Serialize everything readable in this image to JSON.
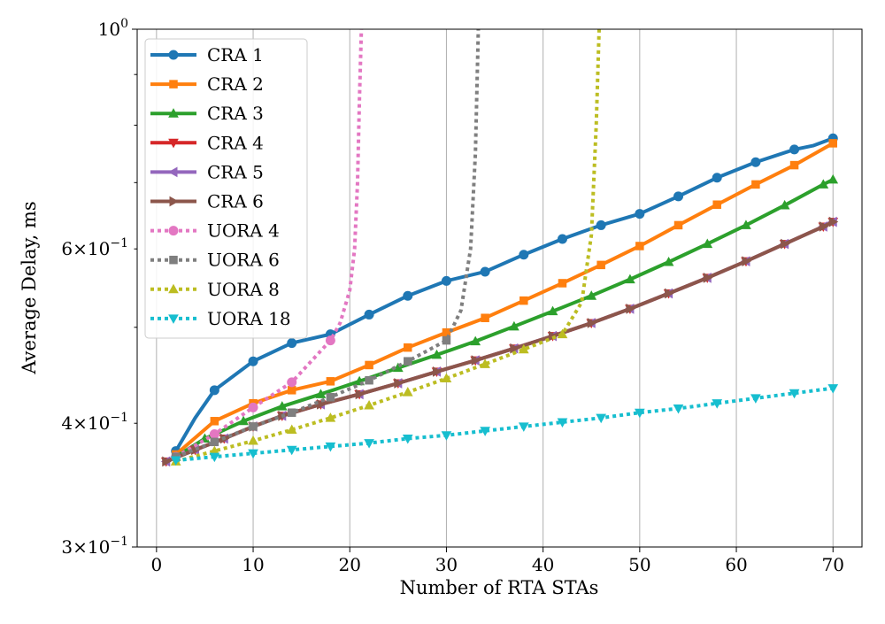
{
  "chart_data": {
    "type": "line",
    "xlabel": "Number of RTA STAs",
    "ylabel": "Average Delay, ms",
    "xlim": [
      -2,
      73
    ],
    "ylim": [
      0.3,
      1.0
    ],
    "yscale": "log",
    "grid": "x-major-vertical",
    "legend_position": "top-left",
    "x_ticks": [
      {
        "value": 0,
        "label": "0"
      },
      {
        "value": 10,
        "label": "10"
      },
      {
        "value": 20,
        "label": "20"
      },
      {
        "value": 30,
        "label": "30"
      },
      {
        "value": 40,
        "label": "40"
      },
      {
        "value": 50,
        "label": "50"
      },
      {
        "value": 60,
        "label": "60"
      },
      {
        "value": 70,
        "label": "70"
      }
    ],
    "y_major_ticks": [
      {
        "value": 0.3,
        "base": "3×10",
        "exp": "−1"
      },
      {
        "value": 1.0,
        "base": "10",
        "exp": "0"
      }
    ],
    "y_minor_ticks": [
      {
        "value": 0.4,
        "base": "4×10",
        "exp": "−1",
        "labeled": true
      },
      {
        "value": 0.5,
        "labeled": false
      },
      {
        "value": 0.6,
        "base": "6×10",
        "exp": "−1",
        "labeled": true
      },
      {
        "value": 0.7,
        "labeled": false
      },
      {
        "value": 0.8,
        "labeled": false
      },
      {
        "value": 0.9,
        "labeled": false
      }
    ],
    "series": [
      {
        "name": "CRA 1",
        "color": "#1f77b4",
        "marker": "circle",
        "dash": "solid",
        "x": [
          2,
          4,
          6,
          10,
          14,
          18,
          22,
          26,
          30,
          34,
          38,
          42,
          46,
          50,
          54,
          58,
          62,
          66,
          68,
          70
        ],
        "y": [
          0.375,
          0.405,
          0.432,
          0.462,
          0.482,
          0.492,
          0.515,
          0.538,
          0.557,
          0.569,
          0.592,
          0.614,
          0.634,
          0.651,
          0.678,
          0.708,
          0.734,
          0.756,
          0.763,
          0.776
        ],
        "markers_x": [
          2,
          6,
          10,
          14,
          18,
          22,
          26,
          30,
          34,
          38,
          42,
          46,
          50,
          54,
          58,
          62,
          66,
          70
        ],
        "markers_y": [
          0.375,
          0.432,
          0.462,
          0.482,
          0.492,
          0.515,
          0.538,
          0.557,
          0.569,
          0.592,
          0.614,
          0.634,
          0.651,
          0.678,
          0.708,
          0.734,
          0.756,
          0.776
        ]
      },
      {
        "name": "CRA 2",
        "color": "#ff7f0e",
        "marker": "square",
        "dash": "solid",
        "x": [
          2,
          6,
          10,
          14,
          18,
          22,
          26,
          30,
          34,
          38,
          42,
          46,
          50,
          54,
          58,
          62,
          66,
          70
        ],
        "y": [
          0.372,
          0.402,
          0.419,
          0.432,
          0.441,
          0.458,
          0.477,
          0.494,
          0.511,
          0.532,
          0.554,
          0.578,
          0.604,
          0.634,
          0.665,
          0.697,
          0.729,
          0.767
        ]
      },
      {
        "name": "CRA 3",
        "color": "#2ca02c",
        "marker": "triangle-up",
        "dash": "solid",
        "x": [
          2,
          5,
          9,
          13,
          17,
          21,
          25,
          29,
          33,
          37,
          41,
          45,
          49,
          53,
          57,
          61,
          65,
          69,
          70
        ],
        "y": [
          0.37,
          0.386,
          0.402,
          0.416,
          0.428,
          0.441,
          0.455,
          0.469,
          0.484,
          0.501,
          0.519,
          0.538,
          0.559,
          0.582,
          0.607,
          0.634,
          0.664,
          0.697,
          0.705
        ]
      },
      {
        "name": "CRA 4",
        "color": "#d62728",
        "marker": "triangle-down",
        "dash": "solid",
        "x": [
          1,
          4,
          7,
          10,
          13,
          17,
          21,
          25,
          29,
          33,
          37,
          41,
          45,
          49,
          53,
          57,
          61,
          65,
          69,
          70
        ],
        "y": [
          0.366,
          0.376,
          0.386,
          0.397,
          0.407,
          0.418,
          0.428,
          0.439,
          0.451,
          0.463,
          0.476,
          0.49,
          0.505,
          0.522,
          0.541,
          0.561,
          0.583,
          0.607,
          0.632,
          0.639
        ]
      },
      {
        "name": "CRA 5",
        "color": "#9467bd",
        "marker": "triangle-left",
        "dash": "solid",
        "x": [
          1,
          4,
          7,
          10,
          13,
          17,
          21,
          25,
          29,
          33,
          37,
          41,
          45,
          49,
          53,
          57,
          61,
          65,
          69,
          70
        ],
        "y": [
          0.366,
          0.376,
          0.386,
          0.397,
          0.407,
          0.418,
          0.428,
          0.439,
          0.451,
          0.463,
          0.476,
          0.49,
          0.505,
          0.522,
          0.541,
          0.561,
          0.583,
          0.607,
          0.632,
          0.639
        ]
      },
      {
        "name": "CRA 6",
        "color": "#8c564b",
        "marker": "triangle-right",
        "dash": "solid",
        "x": [
          1,
          4,
          7,
          10,
          13,
          17,
          21,
          25,
          29,
          33,
          37,
          41,
          45,
          49,
          53,
          57,
          61,
          65,
          69,
          70
        ],
        "y": [
          0.366,
          0.376,
          0.386,
          0.397,
          0.407,
          0.418,
          0.428,
          0.439,
          0.451,
          0.463,
          0.476,
          0.49,
          0.505,
          0.522,
          0.541,
          0.561,
          0.583,
          0.607,
          0.632,
          0.639
        ]
      },
      {
        "name": "UORA 4",
        "color": "#e377c2",
        "marker": "circle",
        "dash": "dotted",
        "x": [
          2,
          6,
          10,
          14,
          18,
          19,
          20,
          20.5,
          20.8,
          21.0,
          21.2
        ],
        "y": [
          0.37,
          0.39,
          0.415,
          0.44,
          0.485,
          0.505,
          0.545,
          0.6,
          0.7,
          0.85,
          1.0
        ],
        "markers_x": [
          2,
          6,
          10,
          14,
          18
        ],
        "markers_y": [
          0.37,
          0.39,
          0.415,
          0.44,
          0.485
        ]
      },
      {
        "name": "UORA 6",
        "color": "#7f7f7f",
        "marker": "square",
        "dash": "dotted",
        "x": [
          2,
          6,
          10,
          14,
          18,
          22,
          26,
          30,
          31.5,
          32.5,
          33.0,
          33.3
        ],
        "y": [
          0.37,
          0.383,
          0.397,
          0.41,
          0.425,
          0.442,
          0.462,
          0.485,
          0.52,
          0.6,
          0.75,
          1.0
        ],
        "markers_x": [
          2,
          6,
          10,
          14,
          18,
          22,
          26,
          30
        ],
        "markers_y": [
          0.37,
          0.383,
          0.397,
          0.41,
          0.425,
          0.442,
          0.462,
          0.485
        ]
      },
      {
        "name": "UORA 8",
        "color": "#bcbd22",
        "marker": "triangle-up",
        "dash": "dotted",
        "x": [
          2,
          6,
          10,
          14,
          18,
          22,
          26,
          30,
          34,
          38,
          42,
          44,
          45,
          45.5,
          45.8
        ],
        "y": [
          0.366,
          0.375,
          0.384,
          0.394,
          0.405,
          0.417,
          0.43,
          0.444,
          0.459,
          0.475,
          0.492,
          0.53,
          0.62,
          0.8,
          1.0
        ],
        "markers_x": [
          2,
          6,
          10,
          14,
          18,
          22,
          26,
          30,
          34,
          38,
          42
        ],
        "markers_y": [
          0.366,
          0.375,
          0.384,
          0.394,
          0.405,
          0.417,
          0.43,
          0.444,
          0.459,
          0.475,
          0.492
        ]
      },
      {
        "name": "UORA 18",
        "color": "#17becf",
        "marker": "triangle-down",
        "dash": "dotted",
        "x": [
          2,
          6,
          10,
          14,
          18,
          22,
          26,
          30,
          34,
          38,
          42,
          46,
          50,
          54,
          58,
          62,
          66,
          70
        ],
        "y": [
          0.367,
          0.37,
          0.373,
          0.376,
          0.379,
          0.382,
          0.386,
          0.389,
          0.393,
          0.397,
          0.401,
          0.405,
          0.41,
          0.414,
          0.419,
          0.424,
          0.429,
          0.434
        ]
      }
    ]
  }
}
